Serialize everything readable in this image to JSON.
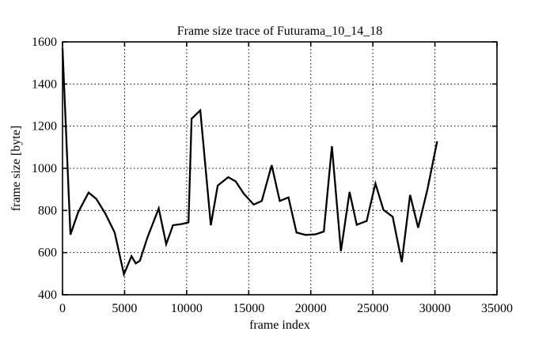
{
  "figure": {
    "title": "Frame size trace of Futurama_10_14_18",
    "xlabel": "frame index",
    "ylabel": "frame size [byte]"
  },
  "colors": {
    "foreground": "#000000",
    "background": "#ffffff"
  },
  "chart_data": {
    "type": "line",
    "title": "Frame size trace of Futurama_10_14_18",
    "xlabel": "frame index",
    "ylabel": "frame size [byte]",
    "xlim": [
      0,
      35000
    ],
    "ylim": [
      400,
      1600
    ],
    "xticks": [
      0,
      5000,
      10000,
      15000,
      20000,
      25000,
      30000,
      35000
    ],
    "yticks": [
      400,
      600,
      800,
      1000,
      1200,
      1400,
      1600
    ],
    "grid": "dotted",
    "legend_position": "none",
    "line_color": "#000000",
    "series": [
      {
        "name": "frame size",
        "points": [
          [
            0,
            1570
          ],
          [
            640,
            685
          ],
          [
            1250,
            790
          ],
          [
            2100,
            885
          ],
          [
            2720,
            855
          ],
          [
            3450,
            785
          ],
          [
            4200,
            695
          ],
          [
            4950,
            497
          ],
          [
            5560,
            583
          ],
          [
            5900,
            549
          ],
          [
            6230,
            561
          ],
          [
            6860,
            675
          ],
          [
            7750,
            810
          ],
          [
            8350,
            640
          ],
          [
            8900,
            730
          ],
          [
            9650,
            736
          ],
          [
            10150,
            744
          ],
          [
            10400,
            1235
          ],
          [
            11100,
            1275
          ],
          [
            11950,
            730
          ],
          [
            12500,
            918
          ],
          [
            13350,
            958
          ],
          [
            13950,
            938
          ],
          [
            14600,
            880
          ],
          [
            15400,
            828
          ],
          [
            16050,
            845
          ],
          [
            16850,
            1015
          ],
          [
            17500,
            845
          ],
          [
            18200,
            862
          ],
          [
            18850,
            695
          ],
          [
            19600,
            684
          ],
          [
            20400,
            687
          ],
          [
            21050,
            700
          ],
          [
            21700,
            1105
          ],
          [
            22430,
            607
          ],
          [
            23120,
            888
          ],
          [
            23700,
            732
          ],
          [
            24500,
            750
          ],
          [
            25210,
            928
          ],
          [
            25850,
            803
          ],
          [
            26600,
            770
          ],
          [
            27330,
            555
          ],
          [
            28000,
            874
          ],
          [
            28650,
            718
          ],
          [
            29390,
            898
          ],
          [
            30180,
            1128
          ]
        ]
      }
    ]
  }
}
